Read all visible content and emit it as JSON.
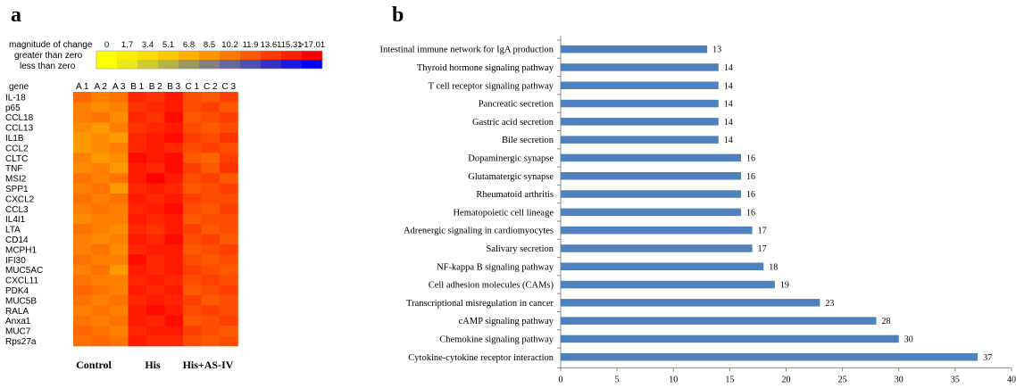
{
  "panels": {
    "a_label": "a",
    "b_label": "b"
  },
  "legend": {
    "magnitude_label": "magnitude of change",
    "greater_label": "greater than zero",
    "less_label": "less than zero",
    "ticks": [
      "0",
      "1.7",
      "3.4",
      "5.1",
      "6.8",
      "8.5",
      "10.2",
      "11.9",
      "13.61",
      "15.31",
      ">17.01"
    ],
    "greater_colors": [
      "#ffff00",
      "#ffee00",
      "#ffdd00",
      "#ffc800",
      "#ffb000",
      "#ff9600",
      "#ff7800",
      "#ff5a00",
      "#ff3c00",
      "#ff2000",
      "#ff0000"
    ],
    "less_colors": [
      "#ffff00",
      "#e8e818",
      "#cccc30",
      "#b3b348",
      "#999960",
      "#808080",
      "#666699",
      "#4d4db3",
      "#3333cc",
      "#1a1ae6",
      "#0000ff"
    ]
  },
  "chart_data": [
    {
      "type": "heatmap",
      "row_header": "gene",
      "columns": [
        "A 1",
        "A 2",
        "A 3",
        "B 1",
        "B 2",
        "B 3",
        "C 1",
        "C 2",
        "C 3"
      ],
      "groups": [
        "Control",
        "His",
        "His+AS-IV"
      ],
      "rows": [
        "IL-18",
        "p65",
        "CCL18",
        "CCL13",
        "IL1B",
        "CCL2",
        "CLTC",
        "TNF",
        "MSI2",
        "SPP1",
        "CXCL2",
        "CCL3",
        "IL4I1",
        "LTA",
        "CD14",
        "MCPH1",
        "IFI30",
        "MUC5AC",
        "CXCL11",
        "PDK4",
        "MUC5B",
        "RALA",
        "Anxa1",
        "MUC7",
        "Rps27a"
      ],
      "values": [
        [
          10.2,
          8.5,
          9.4,
          14.5,
          13.6,
          15.3,
          11.9,
          11.1,
          12.8
        ],
        [
          8.5,
          7.7,
          8.5,
          13.6,
          14.5,
          15.3,
          11.9,
          12.8,
          11.1
        ],
        [
          8.5,
          9.4,
          7.7,
          14.5,
          13.6,
          16.2,
          11.1,
          11.9,
          12.8
        ],
        [
          7.7,
          6.8,
          8.5,
          13.6,
          14.5,
          15.3,
          11.9,
          11.1,
          11.9
        ],
        [
          6.8,
          7.7,
          6.8,
          14.5,
          15.3,
          16.2,
          12.8,
          11.9,
          13.6
        ],
        [
          6.8,
          7.7,
          8.5,
          14.5,
          15.3,
          14.5,
          11.9,
          12.8,
          11.9
        ],
        [
          8.5,
          6.8,
          7.7,
          16.2,
          15.3,
          16.2,
          11.1,
          10.2,
          12.8
        ],
        [
          7.7,
          8.5,
          6.8,
          15.3,
          14.5,
          16.2,
          12.8,
          11.1,
          13.6
        ],
        [
          9.4,
          8.5,
          9.4,
          15.3,
          17.0,
          15.3,
          11.9,
          12.8,
          11.1
        ],
        [
          8.5,
          9.4,
          6.8,
          14.5,
          15.3,
          14.5,
          11.1,
          11.9,
          12.8
        ],
        [
          9.4,
          8.5,
          9.4,
          15.3,
          14.5,
          15.3,
          12.8,
          11.9,
          11.9
        ],
        [
          8.5,
          9.4,
          8.5,
          14.5,
          15.3,
          16.2,
          11.9,
          11.1,
          12.8
        ],
        [
          7.7,
          8.5,
          8.5,
          15.3,
          14.5,
          15.3,
          11.1,
          11.9,
          11.9
        ],
        [
          9.4,
          8.5,
          7.7,
          14.5,
          13.6,
          15.3,
          12.8,
          11.1,
          11.9
        ],
        [
          8.5,
          7.7,
          8.5,
          15.3,
          14.5,
          16.2,
          11.9,
          12.8,
          11.1
        ],
        [
          8.5,
          9.4,
          7.7,
          14.5,
          15.3,
          15.3,
          11.1,
          11.9,
          12.8
        ],
        [
          9.4,
          8.5,
          8.5,
          16.2,
          14.5,
          15.3,
          11.9,
          11.1,
          11.9
        ],
        [
          8.5,
          9.4,
          6.8,
          15.3,
          14.5,
          15.3,
          12.8,
          11.9,
          11.1
        ],
        [
          9.4,
          8.5,
          8.5,
          14.5,
          15.3,
          14.5,
          11.9,
          12.8,
          11.9
        ],
        [
          10.2,
          9.4,
          8.5,
          15.3,
          14.5,
          15.3,
          11.1,
          11.9,
          12.8
        ],
        [
          9.4,
          8.5,
          9.4,
          14.5,
          15.3,
          14.5,
          12.8,
          11.1,
          11.9
        ],
        [
          8.5,
          9.4,
          8.5,
          15.3,
          16.2,
          15.3,
          11.9,
          12.8,
          11.9
        ],
        [
          9.4,
          8.5,
          9.4,
          15.3,
          14.5,
          16.2,
          11.1,
          11.9,
          12.8
        ],
        [
          10.2,
          9.4,
          8.5,
          14.5,
          15.3,
          15.3,
          12.8,
          11.9,
          11.1
        ],
        [
          9.4,
          10.2,
          9.4,
          15.3,
          14.5,
          14.5,
          11.9,
          11.1,
          11.9
        ]
      ],
      "range": [
        0,
        17.01
      ]
    },
    {
      "type": "bar",
      "orientation": "horizontal",
      "categories": [
        "Intestinal immune network for IgA production",
        "Thyroid hormone signaling pathway",
        "T cell receptor signaling pathway",
        "Pancreatic secretion",
        "Gastric acid secretion",
        "Bile secretion",
        "Dopaminergic synapse",
        "Glutamatergic synapse",
        "Rheumatoid arthritis",
        "Hematopoietic cell lineage",
        "Adrenergic signaling in cardiomyocytes",
        "Salivary secretion",
        "NF-kappa B signaling pathway",
        "Cell adhesion molecules (CAMs)",
        "Transcriptional misregulation in cancer",
        "cAMP signaling pathway",
        "Chemokine signaling pathway",
        "Cytokine-cytokine receptor interaction"
      ],
      "values": [
        13,
        14,
        14,
        14,
        14,
        14,
        16,
        16,
        16,
        16,
        17,
        17,
        18,
        19,
        23,
        28,
        30,
        37
      ],
      "value_labels": [
        "13",
        "14",
        "14",
        "14",
        "14",
        "14",
        "16",
        "16",
        "16",
        "16",
        "17",
        "17",
        "18",
        "19",
        "23",
        "28",
        "30",
        "37"
      ],
      "xlim": [
        0,
        40
      ],
      "xticks": [
        "0",
        "5",
        "10",
        "15",
        "20",
        "25",
        "30",
        "35",
        "40"
      ],
      "bar_color": "#4f81bd"
    }
  ]
}
